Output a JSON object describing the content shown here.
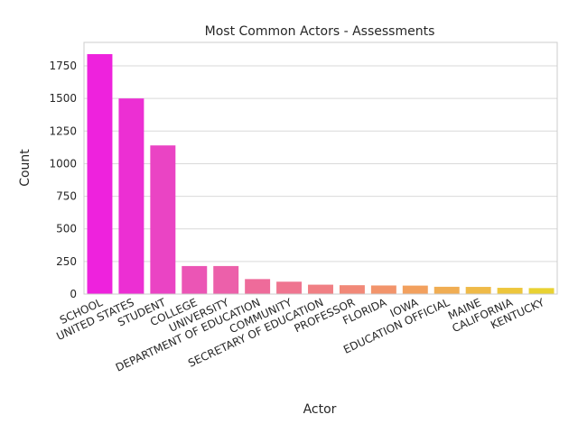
{
  "chart_data": {
    "type": "bar",
    "title": "Most Common Actors - Assessments",
    "xlabel": "Actor",
    "ylabel": "Count",
    "ylim": [
      0,
      1930
    ],
    "yticks": [
      0,
      250,
      500,
      750,
      1000,
      1250,
      1500,
      1750
    ],
    "grid": true,
    "categories": [
      "SCHOOL",
      "UNITED STATES",
      "STUDENT",
      "COLLEGE",
      "UNIVERSITY",
      "DEPARTMENT OF EDUCATION",
      "COMMUNITY",
      "SECRETARY OF EDUCATION",
      "PROFESSOR",
      "FLORIDA",
      "IOWA",
      "EDUCATION OFFICIAL",
      "MAINE",
      "CALIFORNIA",
      "KENTUCKY"
    ],
    "values": [
      1840,
      1500,
      1140,
      215,
      215,
      115,
      95,
      72,
      68,
      66,
      65,
      56,
      55,
      48,
      46
    ],
    "colors": [
      "#ee22dd",
      "#ec2fd3",
      "#ea44c4",
      "#eb55b5",
      "#ec60aa",
      "#ee6b9a",
      "#ef7590",
      "#f07f84",
      "#f18878",
      "#f2946b",
      "#f2a05e",
      "#f0ad53",
      "#efba48",
      "#edc63c",
      "#e9d232"
    ]
  }
}
